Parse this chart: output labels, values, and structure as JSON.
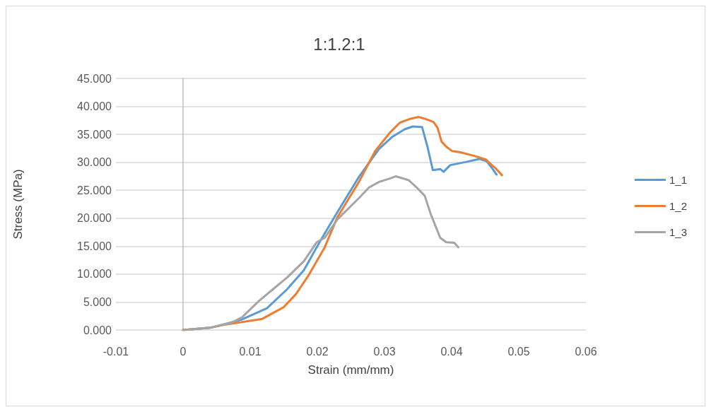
{
  "chart_data": {
    "type": "line",
    "title": "1:1.2:1",
    "xlabel": "Strain (mm/mm)",
    "ylabel": "Stress (MPa)",
    "xlim": [
      -0.01,
      0.06
    ],
    "xticks": [
      -0.01,
      0,
      0.01,
      0.02,
      0.03,
      0.04,
      0.05,
      0.06
    ],
    "ylim": [
      0,
      45
    ],
    "yticks": [
      {
        "value": 0,
        "label": "0.000"
      },
      {
        "value": 5,
        "label": "5.000"
      },
      {
        "value": 10,
        "label": "10.000"
      },
      {
        "value": 15,
        "label": "15.000"
      },
      {
        "value": 20,
        "label": "20.000"
      },
      {
        "value": 25,
        "label": "25.000"
      },
      {
        "value": 30,
        "label": "30.000"
      },
      {
        "value": 35,
        "label": "35.000"
      },
      {
        "value": 40,
        "label": "40.000"
      },
      {
        "value": 45,
        "label": "45.000"
      }
    ],
    "grid": "y",
    "legend": "right",
    "marker": "none",
    "line_style": "solid",
    "series": [
      {
        "name": "1_1",
        "color": "#5b9bd5",
        "x": [
          0,
          0.004,
          0.006,
          0.0088,
          0.0125,
          0.0155,
          0.018,
          0.0199,
          0.0211,
          0.023,
          0.0262,
          0.0292,
          0.0311,
          0.033,
          0.0342,
          0.0356,
          0.0364,
          0.0372,
          0.0383,
          0.0388,
          0.0398,
          0.0423,
          0.0441,
          0.0452,
          0.046,
          0.0467
        ],
        "values": [
          0,
          0.4,
          1.0,
          1.9,
          3.9,
          7.3,
          10.7,
          14.8,
          17.3,
          21.1,
          27.4,
          32.4,
          34.5,
          35.9,
          36.4,
          36.3,
          32.8,
          28.6,
          28.8,
          28.3,
          29.5,
          30.1,
          30.6,
          30.2,
          29,
          27.8
        ]
      },
      {
        "name": "1_2",
        "color": "#ed7d31",
        "x": [
          0,
          0.004,
          0.006,
          0.0118,
          0.015,
          0.0168,
          0.0187,
          0.0199,
          0.0211,
          0.023,
          0.0262,
          0.0286,
          0.0308,
          0.0323,
          0.0339,
          0.0351,
          0.036,
          0.0373,
          0.0379,
          0.0385,
          0.0392,
          0.0401,
          0.0413,
          0.0432,
          0.0451,
          0.046,
          0.0465,
          0.0475
        ],
        "values": [
          0,
          0.4,
          0.9,
          2.0,
          4.1,
          6.4,
          9.8,
          12.3,
          14.8,
          20.2,
          26.5,
          32,
          35.3,
          37.1,
          37.8,
          38.1,
          37.8,
          37.2,
          36.2,
          33.7,
          32.8,
          32.0,
          31.8,
          31.2,
          30.5,
          29.5,
          29,
          27.7
        ]
      },
      {
        "name": "1_3",
        "color": "#a5a5a5",
        "x": [
          0,
          0.004,
          0.0072,
          0.0088,
          0.0113,
          0.0134,
          0.0155,
          0.018,
          0.0199,
          0.0211,
          0.023,
          0.0262,
          0.0277,
          0.0292,
          0.0308,
          0.0317,
          0.0336,
          0.0348,
          0.036,
          0.0369,
          0.0376,
          0.0383,
          0.0392,
          0.0404,
          0.041
        ],
        "values": [
          0,
          0.4,
          1.3,
          2.3,
          5.2,
          7.3,
          9.4,
          12.3,
          15.7,
          16.5,
          19.8,
          23.6,
          25.5,
          26.5,
          27.1,
          27.5,
          26.8,
          25.5,
          24,
          20.7,
          18.6,
          16.5,
          15.7,
          15.6,
          14.8
        ]
      }
    ]
  }
}
